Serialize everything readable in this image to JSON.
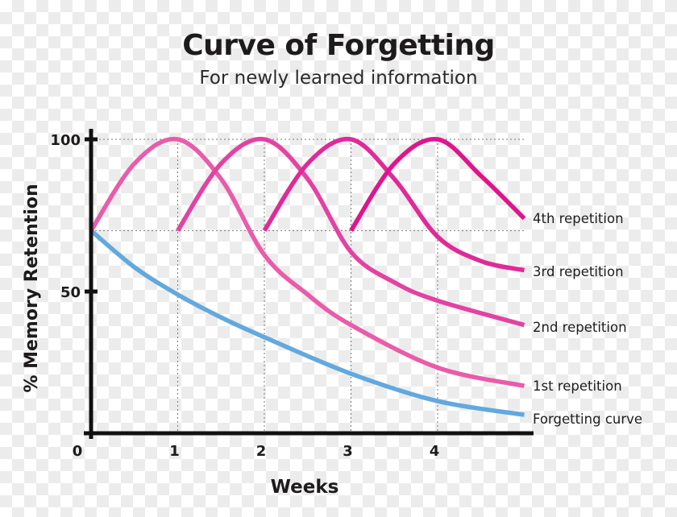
{
  "chart_data": {
    "type": "line",
    "title": "Curve of Forgetting",
    "subtitle": "For newly learned information",
    "xlabel": "Weeks",
    "ylabel": "% Memory Retention",
    "xlim": [
      0,
      5
    ],
    "ylim": [
      0,
      100
    ],
    "x_ticks": [
      0,
      1,
      2,
      3,
      4
    ],
    "y_ticks": [
      100,
      50
    ],
    "y_zero_label": "0",
    "grid": "dotted guides at weeks 1-4 and at 70% and 100%",
    "legend": "inline labels at right end of each line",
    "series": [
      {
        "name": "Forgetting curve",
        "color": "#62a9dd",
        "points": [
          [
            0,
            70
          ],
          [
            0.5,
            58
          ],
          [
            1,
            49
          ],
          [
            1.5,
            41.5
          ],
          [
            2,
            35
          ],
          [
            3,
            23
          ],
          [
            4,
            14
          ],
          [
            5,
            9.5
          ]
        ]
      },
      {
        "name": "1st repetition",
        "color": "#e95caa",
        "points": [
          [
            0,
            70
          ],
          [
            0.5,
            92
          ],
          [
            1,
            100
          ],
          [
            1.5,
            87
          ],
          [
            2,
            62
          ],
          [
            2.5,
            49
          ],
          [
            3,
            39
          ],
          [
            4,
            25
          ],
          [
            5,
            19
          ]
        ]
      },
      {
        "name": "2nd repetition",
        "color": "#e243a2",
        "points": [
          [
            1,
            70
          ],
          [
            1.5,
            92
          ],
          [
            2,
            100
          ],
          [
            2.5,
            87
          ],
          [
            3,
            63
          ],
          [
            3.5,
            53
          ],
          [
            4,
            47
          ],
          [
            5,
            39
          ]
        ]
      },
      {
        "name": "3rd repetition",
        "color": "#e02a98",
        "points": [
          [
            2,
            70
          ],
          [
            2.5,
            92
          ],
          [
            3,
            100
          ],
          [
            3.5,
            87
          ],
          [
            4,
            68
          ],
          [
            4.5,
            60
          ],
          [
            5,
            57
          ]
        ]
      },
      {
        "name": "4th repetition",
        "color": "#e0148d",
        "points": [
          [
            3,
            70
          ],
          [
            3.5,
            92
          ],
          [
            4,
            100
          ],
          [
            4.5,
            88
          ],
          [
            5,
            74
          ]
        ]
      }
    ]
  }
}
